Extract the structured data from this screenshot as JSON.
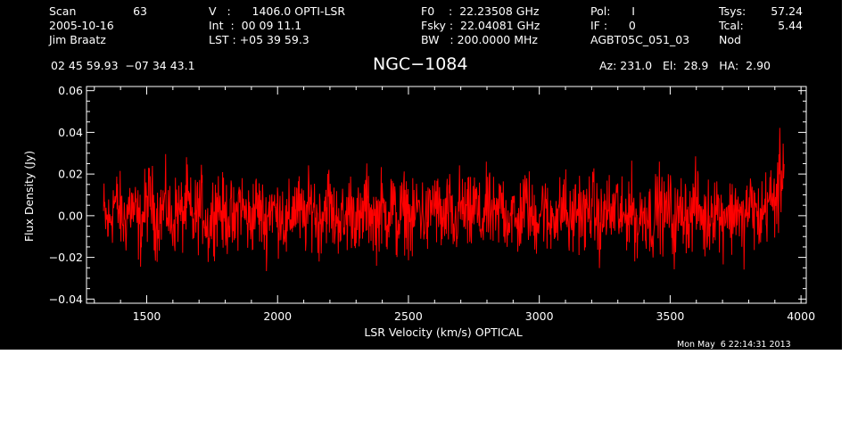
{
  "header": {
    "col1": [
      "Scan",
      "2005-10-16",
      "Jim Braatz"
    ],
    "scan_no": "63",
    "col2": [
      "V   :      1406.0 OPTI-LSR",
      "Int  :  00 09 11.1",
      "LST : +05 39 59.3"
    ],
    "col3": [
      "F0    :  22.23508 GHz",
      "Fsky :  22.04081 GHz",
      "BW   : 200.0000 MHz"
    ],
    "col4": [
      "Pol:      I",
      "IF :      0",
      "AGBT05C_051_03"
    ],
    "col5_labels": [
      "Tsys:",
      "Tcal:",
      "Nod"
    ],
    "col5_values": [
      "57.24",
      "5.44",
      ""
    ],
    "coords": "02 45 59.93  −07 34 43.1",
    "object": "NGC−1084",
    "azelha": "Az: 231.0   El:  28.9   HA:  2.90",
    "timestamp": "Mon May  6 22:14:31 2013"
  },
  "chart_data": {
    "type": "line",
    "xlabel": "LSR Velocity (km/s) OPTICAL",
    "ylabel": "Flux Density (Jy)",
    "xlim": [
      1270,
      4020
    ],
    "ylim": [
      -0.042,
      0.062
    ],
    "xticks": [
      1500,
      2000,
      2500,
      3000,
      3500,
      4000
    ],
    "yticks": [
      -0.04,
      -0.02,
      0.0,
      0.02,
      0.04,
      0.06
    ],
    "ytick_labels": [
      "−0.04",
      "−0.02",
      "0.00",
      "0.02",
      "0.04",
      "0.06"
    ],
    "series": [
      {
        "color": "#ff0000",
        "x_start": 1335,
        "x_step": 20,
        "y": [
          0.001,
          -0.008,
          0.012,
          0.004,
          -0.006,
          0.009,
          0.002,
          -0.011,
          0.007,
          0.015,
          -0.004,
          0.003,
          0.01,
          -0.009,
          0.006,
          -0.002,
          0.013,
          -0.007,
          0.004,
          0.008,
          -0.012,
          0.005,
          0.011,
          -0.003,
          0.002,
          -0.01,
          0.014,
          0.001,
          -0.006,
          0.007,
          0.003,
          -0.008,
          0.012,
          -0.001,
          0.006,
          -0.013,
          0.004,
          0.009,
          -0.005,
          0.002,
          0.011,
          -0.007,
          0.005,
          0.013,
          -0.004,
          0.001,
          -0.009,
          0.008,
          0.003,
          -0.011,
          0.01,
          0.004,
          -0.006,
          0.007,
          -0.002,
          0.012,
          -0.008,
          0.003,
          0.006,
          -0.01,
          0.009,
          0.001,
          -0.005,
          0.014,
          0.002,
          -0.007,
          0.005,
          -0.012,
          0.008,
          0.003,
          -0.004,
          0.011,
          -0.009,
          0.006,
          0.002,
          -0.006,
          0.013,
          -0.003,
          0.004,
          -0.011,
          0.007,
          0.01,
          -0.005,
          0.001,
          0.009,
          -0.008,
          0.005,
          -0.002,
          0.012,
          -0.01,
          0.003,
          0.007,
          -0.004,
          0.011,
          0.002,
          -0.009,
          0.006,
          -0.001,
          0.01,
          -0.007,
          0.004,
          0.008,
          -0.012,
          0.005,
          0.001,
          -0.006,
          0.013,
          -0.003,
          0.009,
          -0.01,
          0.002,
          0.006,
          -0.005,
          0.011,
          0.004,
          -0.008,
          0.003,
          0.012,
          -0.006,
          0.007,
          -0.002,
          0.01,
          -0.011,
          0.005,
          0.008,
          -0.004,
          0.002,
          0.014,
          0.009,
          0.022,
          0.04
        ]
      }
    ]
  }
}
